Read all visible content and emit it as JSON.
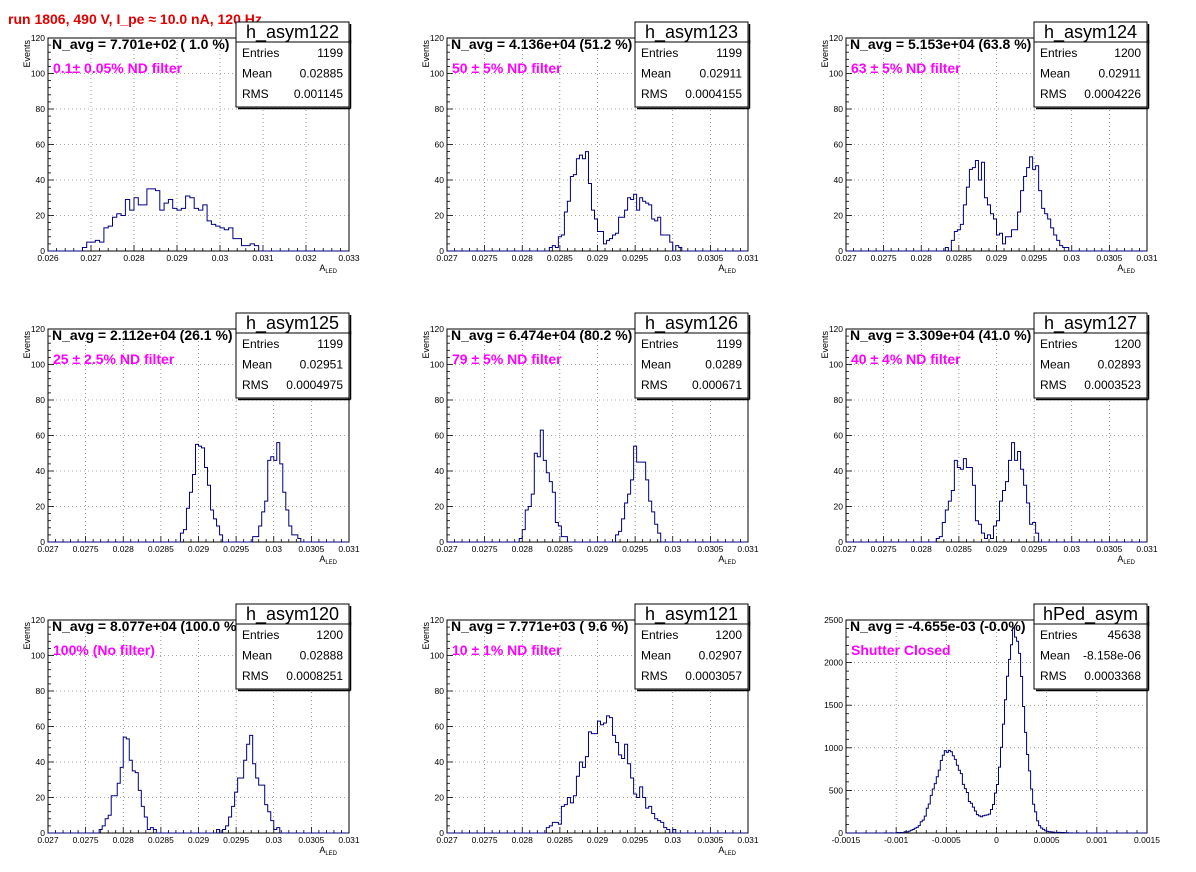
{
  "run_title": "run 1806,   490 V, I_pe ≈ 10.0 nA, 120 Hz",
  "colors": {
    "title": "#e00000",
    "filter_label": "#ff00ff",
    "histogram": "#000080",
    "grid": "#555555"
  },
  "stats_labels": {
    "entries": "Entries",
    "mean": "Mean",
    "rms": "RMS"
  },
  "chart_data": [
    {
      "type": "histogram",
      "name": "h_asym122",
      "n_avg": "N_avg = 7.701e+02 ( 1.0 %)",
      "filter": "0.1± 0.05% ND filter",
      "stats": {
        "entries": "1199",
        "mean": "0.02885",
        "rms": "0.001145"
      },
      "xlabel": "A",
      "xlabel_sub": "LED",
      "ylabel": "Events",
      "xlim": [
        0.026,
        0.033
      ],
      "ylim": [
        0,
        120
      ],
      "xticks": [
        0.026,
        0.027,
        0.028,
        0.029,
        0.03,
        0.031,
        0.032,
        0.033
      ],
      "xtick_labels": [
        "0.026",
        "0.027",
        "0.028",
        "0.029",
        "0.03",
        "0.031",
        "0.032",
        "0.033"
      ],
      "yticks": [
        0,
        20,
        40,
        60,
        80,
        100,
        120
      ],
      "ytick_labels": [
        "0",
        "20",
        "40",
        "60",
        "80",
        "100",
        "120"
      ],
      "peaks": [
        {
          "mu": 0.02815,
          "sigma": 0.00055,
          "amp": 28
        },
        {
          "mu": 0.02945,
          "sigma": 0.0006,
          "amp": 23
        }
      ],
      "bin_width": 0.0001
    },
    {
      "type": "histogram",
      "name": "h_asym123",
      "n_avg": "N_avg = 4.136e+04 (51.2 %)",
      "filter": "50 ± 5% ND filter",
      "stats": {
        "entries": "1199",
        "mean": "0.02911",
        "rms": "0.0004155"
      },
      "xlabel": "A",
      "xlabel_sub": "LED",
      "ylabel": "Events",
      "xlim": [
        0.027,
        0.031
      ],
      "ylim": [
        0,
        120
      ],
      "xticks": [
        0.027,
        0.0275,
        0.028,
        0.0285,
        0.029,
        0.0295,
        0.03,
        0.0305,
        0.031
      ],
      "xtick_labels": [
        "0.027",
        "0.0275",
        "0.028",
        "0.0285",
        "0.029",
        "0.0295",
        "0.03",
        "0.0305",
        "0.031"
      ],
      "yticks": [
        0,
        20,
        40,
        60,
        80,
        100,
        120
      ],
      "ytick_labels": [
        "0",
        "20",
        "40",
        "60",
        "80",
        "100",
        "120"
      ],
      "peaks": [
        {
          "mu": 0.02878,
          "sigma": 0.00014,
          "amp": 56
        },
        {
          "mu": 0.02955,
          "sigma": 0.00022,
          "amp": 30
        }
      ],
      "bin_width": 4e-05
    },
    {
      "type": "histogram",
      "name": "h_asym124",
      "n_avg": "N_avg = 5.153e+04 (63.8 %)",
      "filter": "63 ± 5% ND filter",
      "stats": {
        "entries": "1200",
        "mean": "0.02911",
        "rms": "0.0004226"
      },
      "xlabel": "A",
      "xlabel_sub": "LED",
      "ylabel": "Events",
      "xlim": [
        0.027,
        0.031
      ],
      "ylim": [
        0,
        120
      ],
      "xticks": [
        0.027,
        0.0275,
        0.028,
        0.0285,
        0.029,
        0.0295,
        0.03,
        0.0305,
        0.031
      ],
      "xtick_labels": [
        "0.027",
        "0.0275",
        "0.028",
        "0.0285",
        "0.029",
        "0.0295",
        "0.03",
        "0.0305",
        "0.031"
      ],
      "yticks": [
        0,
        20,
        40,
        60,
        80,
        100,
        120
      ],
      "ytick_labels": [
        "0",
        "20",
        "40",
        "60",
        "80",
        "100",
        "120"
      ],
      "peaks": [
        {
          "mu": 0.02875,
          "sigma": 0.00015,
          "amp": 48
        },
        {
          "mu": 0.02948,
          "sigma": 0.00016,
          "amp": 45
        }
      ],
      "bin_width": 4e-05
    },
    {
      "type": "histogram",
      "name": "h_asym125",
      "n_avg": "N_avg = 2.112e+04 (26.1 %)",
      "filter": "25 ± 2.5% ND filter",
      "stats": {
        "entries": "1199",
        "mean": "0.02951",
        "rms": "0.0004975"
      },
      "xlabel": "A",
      "xlabel_sub": "LED",
      "ylabel": "Events",
      "xlim": [
        0.027,
        0.031
      ],
      "ylim": [
        0,
        120
      ],
      "xticks": [
        0.027,
        0.0275,
        0.028,
        0.0285,
        0.029,
        0.0295,
        0.03,
        0.0305,
        0.031
      ],
      "xtick_labels": [
        "0.027",
        "0.0275",
        "0.028",
        "0.0285",
        "0.029",
        "0.0295",
        "0.03",
        "0.0305",
        "0.031"
      ],
      "yticks": [
        0,
        20,
        40,
        60,
        80,
        100,
        120
      ],
      "ytick_labels": [
        "0",
        "20",
        "40",
        "60",
        "80",
        "100",
        "120"
      ],
      "peaks": [
        {
          "mu": 0.02903,
          "sigma": 0.00011,
          "amp": 57
        },
        {
          "mu": 0.03003,
          "sigma": 0.00011,
          "amp": 56
        }
      ],
      "bin_width": 4e-05
    },
    {
      "type": "histogram",
      "name": "h_asym126",
      "n_avg": "N_avg = 6.474e+04 (80.2 %)",
      "filter": "79 ± 5% ND filter",
      "stats": {
        "entries": "1199",
        "mean": "0.0289",
        "rms": "0.000671"
      },
      "xlabel": "A",
      "xlabel_sub": "LED",
      "ylabel": "Events",
      "xlim": [
        0.027,
        0.031
      ],
      "ylim": [
        0,
        120
      ],
      "xticks": [
        0.027,
        0.0275,
        0.028,
        0.0285,
        0.029,
        0.0295,
        0.03,
        0.0305,
        0.031
      ],
      "xtick_labels": [
        "0.027",
        "0.0275",
        "0.028",
        "0.0285",
        "0.029",
        "0.0295",
        "0.03",
        "0.0305",
        "0.031"
      ],
      "yticks": [
        0,
        20,
        40,
        60,
        80,
        100,
        120
      ],
      "ytick_labels": [
        "0",
        "20",
        "40",
        "60",
        "80",
        "100",
        "120"
      ],
      "peaks": [
        {
          "mu": 0.02826,
          "sigma": 0.00012,
          "amp": 54
        },
        {
          "mu": 0.02955,
          "sigma": 0.00012,
          "amp": 54
        }
      ],
      "bin_width": 4e-05
    },
    {
      "type": "histogram",
      "name": "h_asym127",
      "n_avg": "N_avg = 3.309e+04 (41.0 %)",
      "filter": "40 ± 4% ND filter",
      "stats": {
        "entries": "1200",
        "mean": "0.02893",
        "rms": "0.0003523"
      },
      "xlabel": "A",
      "xlabel_sub": "LED",
      "ylabel": "Events",
      "xlim": [
        0.027,
        0.031
      ],
      "ylim": [
        0,
        120
      ],
      "xticks": [
        0.027,
        0.0275,
        0.028,
        0.0285,
        0.029,
        0.0295,
        0.03,
        0.0305,
        0.031
      ],
      "xtick_labels": [
        "0.027",
        "0.0275",
        "0.028",
        "0.0285",
        "0.029",
        "0.0295",
        "0.03",
        "0.0305",
        "0.031"
      ],
      "yticks": [
        0,
        20,
        40,
        60,
        80,
        100,
        120
      ],
      "ytick_labels": [
        "0",
        "20",
        "40",
        "60",
        "80",
        "100",
        "120"
      ],
      "peaks": [
        {
          "mu": 0.02855,
          "sigma": 0.00013,
          "amp": 50
        },
        {
          "mu": 0.02925,
          "sigma": 0.00013,
          "amp": 50
        }
      ],
      "bin_width": 4e-05
    },
    {
      "type": "histogram",
      "name": "h_asym120",
      "n_avg": "N_avg = 8.077e+04 (100.0 %)",
      "filter": "100% (No filter)",
      "stats": {
        "entries": "1200",
        "mean": "0.02888",
        "rms": "0.0008251"
      },
      "xlabel": "A",
      "xlabel_sub": "LED",
      "ylabel": "Events",
      "xlim": [
        0.027,
        0.031
      ],
      "ylim": [
        0,
        120
      ],
      "xticks": [
        0.027,
        0.0275,
        0.028,
        0.0285,
        0.029,
        0.0295,
        0.03,
        0.0305,
        0.031
      ],
      "xtick_labels": [
        "0.027",
        "0.0275",
        "0.028",
        "0.0285",
        "0.029",
        "0.0295",
        "0.03",
        "0.0305",
        "0.031"
      ],
      "yticks": [
        0,
        20,
        40,
        60,
        80,
        100,
        120
      ],
      "ytick_labels": [
        "0",
        "20",
        "40",
        "60",
        "80",
        "100",
        "120"
      ],
      "peaks": [
        {
          "mu": 0.02805,
          "sigma": 0.00013,
          "amp": 48
        },
        {
          "mu": 0.02968,
          "sigma": 0.00015,
          "amp": 48
        }
      ],
      "bin_width": 4e-05
    },
    {
      "type": "histogram",
      "name": "h_asym121",
      "n_avg": "N_avg = 7.771e+03 ( 9.6 %)",
      "filter": "10 ± 1% ND filter",
      "stats": {
        "entries": "1200",
        "mean": "0.02907",
        "rms": "0.0003057"
      },
      "xlabel": "A",
      "xlabel_sub": "LED",
      "ylabel": "Events",
      "xlim": [
        0.027,
        0.031
      ],
      "ylim": [
        0,
        120
      ],
      "xticks": [
        0.027,
        0.0275,
        0.028,
        0.0285,
        0.029,
        0.0295,
        0.03,
        0.0305,
        0.031
      ],
      "xtick_labels": [
        "0.027",
        "0.0275",
        "0.028",
        "0.0285",
        "0.029",
        "0.0295",
        "0.03",
        "0.0305",
        "0.031"
      ],
      "yticks": [
        0,
        20,
        40,
        60,
        80,
        100,
        120
      ],
      "ytick_labels": [
        "0",
        "20",
        "40",
        "60",
        "80",
        "100",
        "120"
      ],
      "peaks": [
        {
          "mu": 0.02912,
          "sigma": 0.00031,
          "amp": 62
        }
      ],
      "bin_width": 4e-05
    },
    {
      "type": "histogram",
      "name": "hPed_asym",
      "n_avg": "N_avg = -4.655e-03 (-0.0%)",
      "filter": "Shutter Closed",
      "stats": {
        "entries": "45638",
        "mean": "-8.158e-06",
        "rms": "0.0003368"
      },
      "xlabel": "",
      "xlabel_sub": "",
      "ylabel": "",
      "xlim": [
        -0.0015,
        0.0015
      ],
      "ylim": [
        0,
        2500
      ],
      "xticks": [
        -0.0015,
        -0.001,
        -0.0005,
        0,
        0.0005,
        0.001,
        0.0015
      ],
      "xtick_labels": [
        "-0.0015",
        "-0.001",
        "-0.0005",
        "0",
        "0.0005",
        "0.001",
        "0.0015"
      ],
      "yticks": [
        0,
        500,
        1000,
        1500,
        2000,
        2500
      ],
      "ytick_labels": [
        "0",
        "500",
        "1000",
        "1500",
        "2000",
        "2500"
      ],
      "peaks": [
        {
          "mu": -0.00048,
          "sigma": 0.00013,
          "amp": 900
        },
        {
          "mu": 0.00018,
          "sigma": 9.5e-05,
          "amp": 2280
        },
        {
          "mu": -0.00015,
          "sigma": 0.0003,
          "amp": 160
        }
      ],
      "bin_width": 2e-05
    }
  ]
}
